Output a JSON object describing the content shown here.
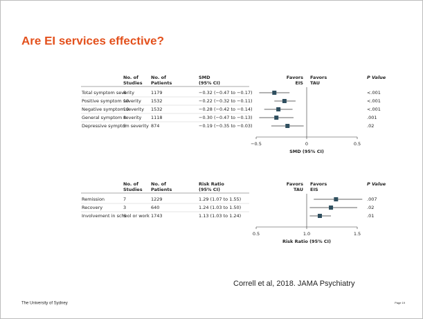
{
  "title": "Are EI services effective?",
  "citation": "Correll et al, 2018. JAMA Psychiatry",
  "footer": {
    "left": "The University of Sydney",
    "right": "Page 19"
  },
  "forests": [
    {
      "col_headers": [
        [
          "No. of",
          "Studies"
        ],
        [
          "No. of",
          "Patients"
        ],
        [
          "SMD",
          "(95% CI)"
        ]
      ],
      "favors": [
        [
          "Favors",
          "EIS"
        ],
        [
          "Favors",
          "TAU"
        ]
      ],
      "p_header": "P Value",
      "rows": [
        {
          "label": "Total symptom severity",
          "studies": 8,
          "patients": 1179,
          "ci": "−0.32 (−0.47 to −0.17)",
          "p": "<.001",
          "est": -0.32,
          "lo": -0.47,
          "hi": -0.17
        },
        {
          "label": "Positive symptom severity",
          "studies": 10,
          "patients": 1532,
          "ci": "−0.22 (−0.32 to −0.11)",
          "p": "<.001",
          "est": -0.22,
          "lo": -0.32,
          "hi": -0.11
        },
        {
          "label": "Negative symptom severity",
          "studies": 10,
          "patients": 1532,
          "ci": "−0.28 (−0.42 to −0.14)",
          "p": "<.001",
          "est": -0.28,
          "lo": -0.42,
          "hi": -0.14
        },
        {
          "label": "General symptom severity",
          "studies": 8,
          "patients": 1118,
          "ci": "−0.30 (−0.47 to −0.13)",
          "p": ".001",
          "est": -0.3,
          "lo": -0.47,
          "hi": -0.13
        },
        {
          "label": "Depressive symptom severity",
          "studies": 5,
          "patients": 874,
          "ci": "−0.19 (−0.35 to −0.03)",
          "p": ".02",
          "est": -0.19,
          "lo": -0.35,
          "hi": -0.03
        }
      ],
      "ref": 0,
      "xlim": [
        -0.5,
        0.5
      ],
      "xticks": [
        {
          "value": -0.5,
          "label": "−0.5"
        },
        0,
        0.5
      ],
      "xlabel": "SMD (95% CI)"
    },
    {
      "col_headers": [
        [
          "No. of",
          "Studies"
        ],
        [
          "No. of",
          "Patients"
        ],
        [
          "Risk Ratio",
          "(95% CI)"
        ]
      ],
      "favors": [
        [
          "Favors",
          "TAU"
        ],
        [
          "Favors",
          "EIS"
        ]
      ],
      "p_header": "P Value",
      "rows": [
        {
          "label": "Remission",
          "studies": 7,
          "patients": 1229,
          "ci": "1.29 (1.07 to 1.55)",
          "p": ".007",
          "est": 1.29,
          "lo": 1.07,
          "hi": 1.55
        },
        {
          "label": "Recovery",
          "studies": 3,
          "patients": 640,
          "ci": "1.24 (1.03 to 1.50)",
          "p": ".02",
          "est": 1.24,
          "lo": 1.03,
          "hi": 1.5
        },
        {
          "label": "Involvement in school or work",
          "studies": 6,
          "patients": 1743,
          "ci": "1.13 (1.03 to 1.24)",
          "p": ".01",
          "est": 1.13,
          "lo": 1.03,
          "hi": 1.24
        }
      ],
      "ref": 1,
      "xlim": [
        0.5,
        1.5
      ],
      "xticks": [
        0.5,
        {
          "value": 1,
          "label": "1.0"
        },
        1.5
      ],
      "xlabel": "Risk Ratio (95% CI)"
    }
  ]
}
